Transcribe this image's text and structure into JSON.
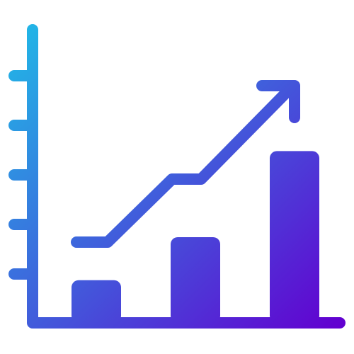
{
  "icon": {
    "name": "growth-chart-icon",
    "colors": {
      "gradient_start": "#22b4e6",
      "gradient_end": "#6200d0",
      "background": "#ffffff"
    },
    "tick_marks": 5,
    "bars": [
      {
        "name": "bar-1",
        "relative_height": 0.14
      },
      {
        "name": "bar-2",
        "relative_height": 0.3
      },
      {
        "name": "bar-3",
        "relative_height": 0.62
      }
    ]
  }
}
